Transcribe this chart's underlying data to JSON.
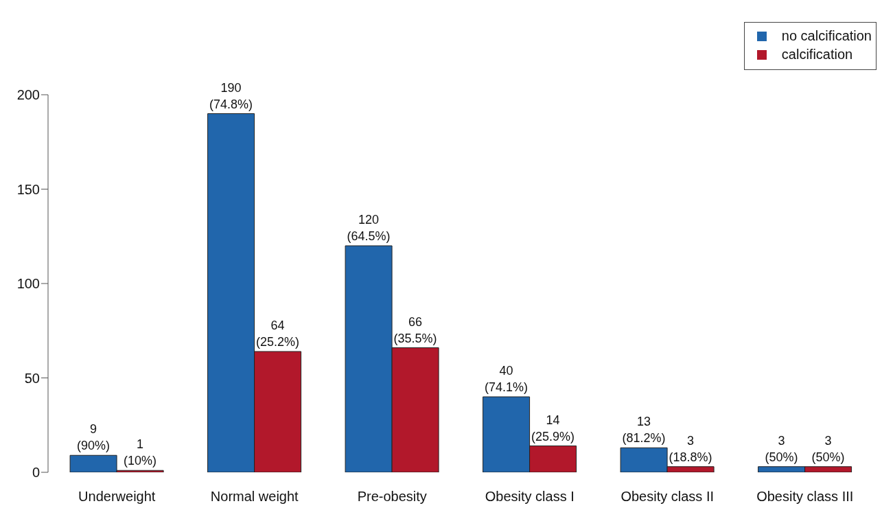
{
  "chart_data": {
    "type": "bar",
    "categories": [
      "Underweight",
      "Normal weight",
      "Pre-obesity",
      "Obesity class I",
      "Obesity class II",
      "Obesity class III"
    ],
    "series": [
      {
        "name": "no calcification",
        "color": "#2166ac",
        "values": [
          9,
          190,
          120,
          40,
          13,
          3
        ],
        "value_labels": [
          "9\n(90%)",
          "190\n(74.8%)",
          "120\n(64.5%)",
          "40\n(74.1%)",
          "13\n(81.2%)",
          "3\n(50%)"
        ]
      },
      {
        "name": "calcification",
        "color": "#b2182b",
        "values": [
          1,
          64,
          66,
          14,
          3,
          3
        ],
        "value_labels": [
          "1\n(10%)",
          "64\n(25.2%)",
          "66\n(35.5%)",
          "14\n(25.9%)",
          "3\n(18.8%)",
          "3\n(50%)"
        ]
      }
    ],
    "ylim": [
      0,
      200
    ],
    "yticks": [
      0,
      50,
      100,
      150,
      200
    ],
    "grid": false,
    "legend": "top right"
  }
}
